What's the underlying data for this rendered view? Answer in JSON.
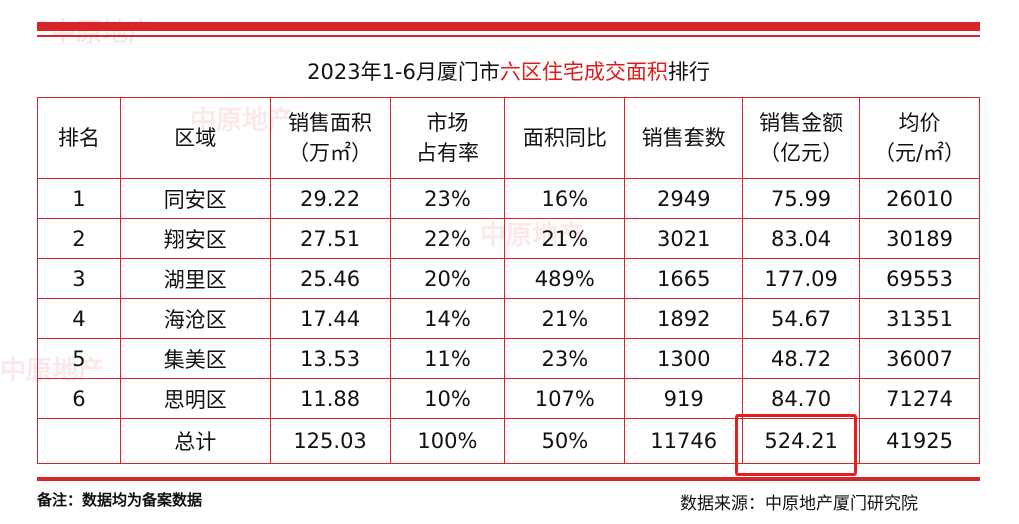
{
  "title": {
    "before": "2023年1-6月厦门市",
    "highlight": "六区住宅成交面积",
    "after": "排行"
  },
  "table": {
    "header": [
      [
        "排名"
      ],
      [
        "区域"
      ],
      [
        "销售面积",
        "（万㎡）"
      ],
      [
        "市场",
        "占有率"
      ],
      [
        "面积同比"
      ],
      [
        "销售套数"
      ],
      [
        "销售金额",
        "（亿元）"
      ],
      [
        "均价",
        "（元/㎡）"
      ]
    ],
    "rows": [
      [
        "1",
        "同安区",
        "29.22",
        "23%",
        "16%",
        "2949",
        "75.99",
        "26010"
      ],
      [
        "2",
        "翔安区",
        "27.51",
        "22%",
        "21%",
        "3021",
        "83.04",
        "30189"
      ],
      [
        "3",
        "湖里区",
        "25.46",
        "20%",
        "489%",
        "1665",
        "177.09",
        "69553"
      ],
      [
        "4",
        "海沧区",
        "17.44",
        "14%",
        "21%",
        "1892",
        "54.67",
        "31351"
      ],
      [
        "5",
        "集美区",
        "13.53",
        "11%",
        "23%",
        "1300",
        "48.72",
        "36007"
      ],
      [
        "6",
        "思明区",
        "11.88",
        "10%",
        "107%",
        "919",
        "84.70",
        "71274"
      ]
    ],
    "total": [
      "总计",
      "125.03",
      "100%",
      "50%",
      "11746",
      "524.21",
      "41925"
    ]
  },
  "footer": {
    "note": "备注：数据均为备案数据",
    "source": "数据来源：中原地产厦门研究院"
  }
}
